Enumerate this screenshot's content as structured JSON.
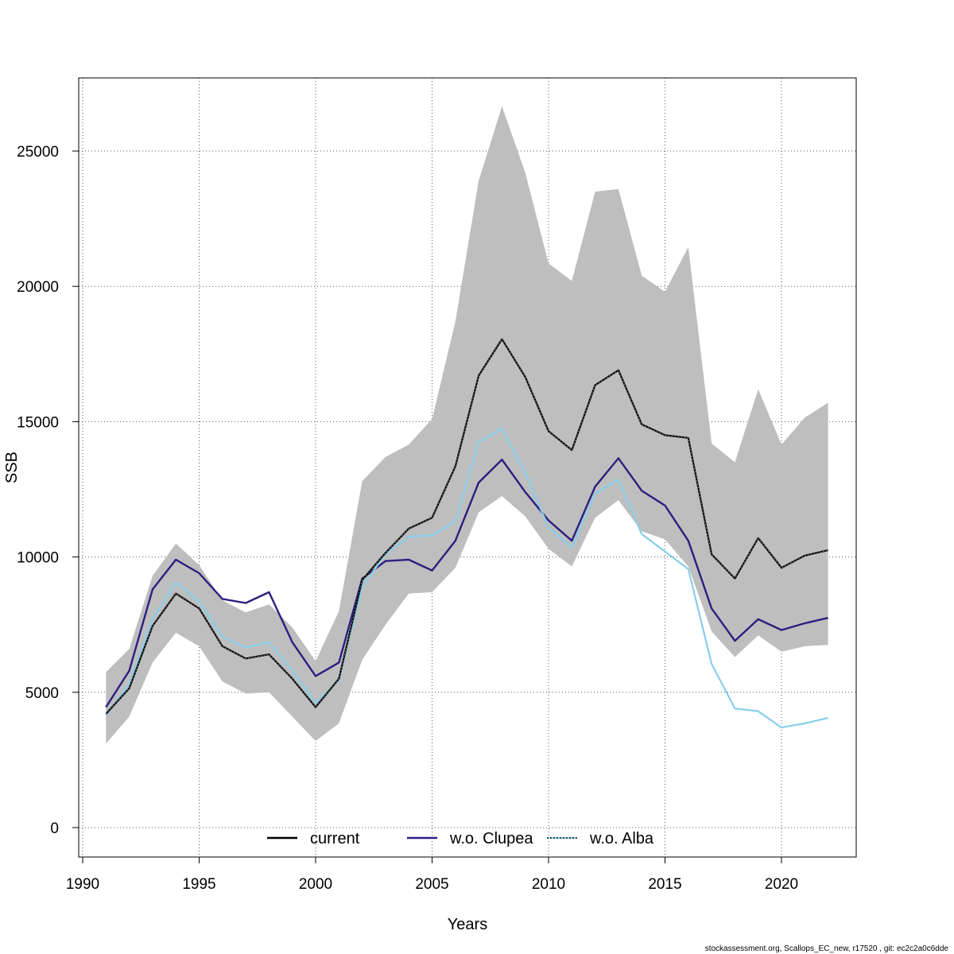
{
  "chart_data": {
    "type": "line",
    "xlabel": "Years",
    "ylabel": "SSB",
    "xlim": [
      1990,
      2022.5
    ],
    "ylim": [
      -1000,
      27500
    ],
    "x_ticks": [
      1990,
      1995,
      2000,
      2005,
      2010,
      2015,
      2020
    ],
    "y_ticks": [
      0,
      5000,
      10000,
      15000,
      20000,
      25000
    ],
    "grid": true,
    "legend_position": "bottom",
    "x": [
      1991,
      1992,
      1993,
      1994,
      1995,
      1996,
      1997,
      1998,
      1999,
      2000,
      2001,
      2002,
      2003,
      2004,
      2005,
      2006,
      2007,
      2008,
      2009,
      2010,
      2011,
      2012,
      2013,
      2014,
      2015,
      2016,
      2017,
      2018,
      2019,
      2020,
      2021,
      2022
    ],
    "confidence_band": {
      "color": "#bebebe",
      "lower": [
        3100,
        4100,
        6100,
        7200,
        6700,
        5400,
        4950,
        5000,
        4100,
        3200,
        3850,
        6200,
        7500,
        8650,
        8700,
        9600,
        11650,
        12250,
        11500,
        10300,
        9650,
        11450,
        12100,
        10950,
        10650,
        9650,
        7250,
        6300,
        7100,
        6500,
        6700,
        6750
      ],
      "upper": [
        5750,
        6600,
        9300,
        10500,
        9700,
        8400,
        7950,
        8250,
        7400,
        6150,
        8000,
        12800,
        13700,
        14150,
        15100,
        18700,
        23900,
        26650,
        24200,
        20850,
        20200,
        23500,
        23600,
        20400,
        19800,
        21450,
        14200,
        13500,
        16200,
        14150,
        15150,
        15700
      ]
    },
    "series": [
      {
        "name": "current",
        "color": "#000000",
        "values": [
          4200,
          5150,
          7450,
          8650,
          8100,
          6700,
          6250,
          6400,
          5500,
          4450,
          5500,
          9150,
          10150,
          11050,
          11450,
          13350,
          16700,
          18050,
          16650,
          14650,
          13950,
          16350,
          16900,
          14900,
          14500,
          14400,
          10100,
          9200,
          10700,
          9600,
          10050,
          10250
        ]
      },
      {
        "name": "w.o. Clupea",
        "color": "#2d1e80",
        "values": [
          4450,
          5800,
          8800,
          9900,
          9400,
          8450,
          8300,
          8700,
          6850,
          5600,
          6100,
          9200,
          9850,
          9900,
          9500,
          10600,
          12750,
          13600,
          12400,
          11350,
          10600,
          12600,
          13650,
          12450,
          11900,
          10600,
          8100,
          6900,
          7700,
          7300,
          7550,
          7750
        ]
      },
      {
        "name": "w.o. Alba",
        "color": "#87ceeb",
        "values": [
          4150,
          5300,
          7700,
          9050,
          8350,
          7050,
          6650,
          6850,
          5800,
          4600,
          5450,
          8900,
          10100,
          10750,
          10800,
          11300,
          14250,
          14750,
          13100,
          11100,
          10350,
          12350,
          12850,
          10850,
          10200,
          9550,
          6050,
          4400,
          4300,
          3700,
          3850,
          4050
        ]
      }
    ]
  },
  "footer_text": "stockassessment.org, Scallops_EC_new, r17520 , git: ec2c2a0c6dde"
}
